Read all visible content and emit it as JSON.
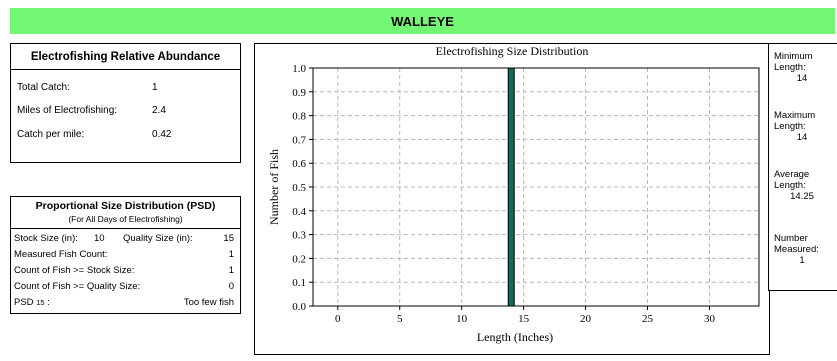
{
  "banner": {
    "species": "WALLEYE"
  },
  "abundance": {
    "title": "Electrofishing Relative Abundance",
    "rows": [
      {
        "label": "Total Catch:",
        "value": "1"
      },
      {
        "label": "Miles of Electrofishing:",
        "value": "2.4"
      },
      {
        "label": "Catch per mile:",
        "value": "0.42"
      }
    ]
  },
  "psd": {
    "title": "Proportional Size Distribution (PSD)",
    "subtitle": "(For All Days of Electrofishing)",
    "stock_label": "Stock Size (in):",
    "stock_value": "10",
    "quality_label": "Quality Size (in):",
    "quality_value": "15",
    "measured_label": "Measured Fish Count:",
    "measured_value": "1",
    "stock_count_label": "Count of Fish >= Stock Size:",
    "stock_count_value": "1",
    "quality_count_label": "Count of Fish >= Quality Size:",
    "quality_count_value": "0",
    "psd_label": "PSD",
    "psd_sub": "15",
    "psd_suffix": " :",
    "psd_value": "Too few fish"
  },
  "chart_data": {
    "type": "bar",
    "title": "Electrofishing Size Distribution",
    "xlabel": "Length (Inches)",
    "ylabel": "Number of Fish",
    "xlim": [
      -2,
      34
    ],
    "ylim": [
      0,
      1.0
    ],
    "xticks": [
      "0",
      "5",
      "10",
      "15",
      "20",
      "25",
      "30"
    ],
    "xtick_values": [
      0,
      5,
      10,
      15,
      20,
      25,
      30
    ],
    "yticks": [
      "0.0",
      "0.1",
      "0.2",
      "0.3",
      "0.4",
      "0.5",
      "0.6",
      "0.7",
      "0.8",
      "0.9",
      "1.0"
    ],
    "ytick_values": [
      0,
      0.1,
      0.2,
      0.3,
      0.4,
      0.5,
      0.6,
      0.7,
      0.8,
      0.9,
      1.0
    ],
    "bars": [
      {
        "x": 14,
        "value": 1
      }
    ],
    "bar_color": "#0f6b5a",
    "grid": true
  },
  "stats": {
    "min_label": "Minimum Length:",
    "min_value": "14",
    "max_label": "Maximum Length:",
    "max_value": "14",
    "avg_label": "Average Length:",
    "avg_value": "14.25",
    "num_label": "Number Measured:",
    "num_value": "1"
  }
}
